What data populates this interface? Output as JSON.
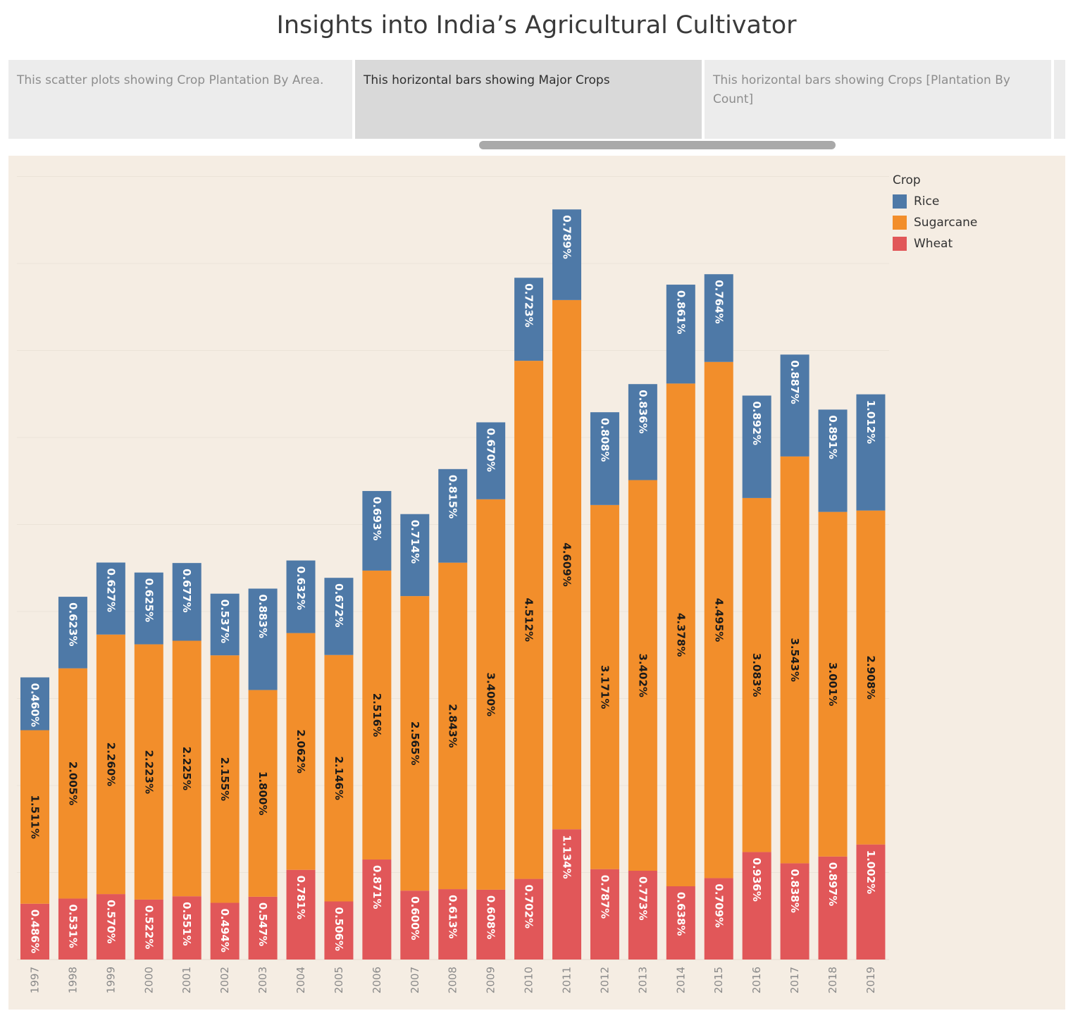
{
  "title": "Insights into India’s Agricultural Cultivator",
  "tabs": [
    {
      "label": "This scatter plots showing Crop Plantation By Area.",
      "active": false
    },
    {
      "label": "This horizontal bars showing Major Crops",
      "active": true
    },
    {
      "label": "This horizontal bars showing Crops [Plantation By Count]",
      "active": false
    }
  ],
  "legend": {
    "title": "Crop",
    "items": [
      {
        "name": "Rice",
        "color": "#4e79a7"
      },
      {
        "name": "Sugarcane",
        "color": "#f28e2b"
      },
      {
        "name": "Wheat",
        "color": "#e15759"
      }
    ]
  },
  "chart_data": {
    "type": "bar",
    "stacked": true,
    "categories": [
      "1997",
      "1998",
      "1999",
      "2000",
      "2001",
      "2002",
      "2003",
      "2004",
      "2005",
      "2006",
      "2007",
      "2008",
      "2009",
      "2010",
      "2011",
      "2012",
      "2013",
      "2014",
      "2015",
      "2016",
      "2017",
      "2018",
      "2019"
    ],
    "series": [
      {
        "name": "Wheat",
        "color": "#e15759",
        "label_color": "#ffffff",
        "values": [
          0.486,
          0.531,
          0.57,
          0.522,
          0.551,
          0.494,
          0.547,
          0.781,
          0.506,
          0.871,
          0.6,
          0.613,
          0.608,
          0.702,
          1.134,
          0.787,
          0.773,
          0.638,
          0.709,
          0.936,
          0.838,
          0.897,
          1.002
        ],
        "labels": [
          "0.486%",
          "0.531%",
          "0.570%",
          "0.522%",
          "0.551%",
          "0.494%",
          "0.547%",
          "0.781%",
          "0.506%",
          "0.871%",
          "0.600%",
          "0.613%",
          "0.608%",
          "0.702%",
          "1.134%",
          "0.787%",
          "0.773%",
          "0.638%",
          "0.709%",
          "0.936%",
          "0.838%",
          "0.897%",
          "1.002%"
        ]
      },
      {
        "name": "Sugarcane",
        "color": "#f28e2b",
        "label_color": "#1a1a1a",
        "values": [
          1.511,
          2.005,
          2.26,
          2.223,
          2.225,
          2.155,
          1.8,
          2.062,
          2.146,
          2.516,
          2.565,
          2.843,
          3.4,
          4.512,
          4.609,
          3.171,
          3.402,
          4.378,
          4.495,
          3.083,
          3.543,
          3.001,
          2.908
        ],
        "labels": [
          "1.511%",
          "2.005%",
          "2.260%",
          "2.223%",
          "2.225%",
          "2.155%",
          "1.800%",
          "2.062%",
          "2.146%",
          "2.516%",
          "2.565%",
          "2.843%",
          "3.400%",
          "4.512%",
          "4.609%",
          "3.171%",
          "3.402%",
          "4.378%",
          "4.495%",
          "3.083%",
          "3.543%",
          "3.001%",
          "2.908%"
        ]
      },
      {
        "name": "Rice",
        "color": "#4e79a7",
        "label_color": "#ffffff",
        "values": [
          0.46,
          0.623,
          0.627,
          0.625,
          0.677,
          0.537,
          0.883,
          0.632,
          0.672,
          0.693,
          0.714,
          0.815,
          0.67,
          0.723,
          0.789,
          0.808,
          0.836,
          0.861,
          0.764,
          0.892,
          0.887,
          0.891,
          1.012
        ],
        "labels": [
          "0.460%",
          "0.623%",
          "0.627%",
          "0.625%",
          "0.677%",
          "0.537%",
          "0.883%",
          "0.632%",
          "0.672%",
          "0.693%",
          "0.714%",
          "0.815%",
          "0.670%",
          "0.723%",
          "0.789%",
          "0.808%",
          "0.836%",
          "0.861%",
          "0.764%",
          "0.892%",
          "0.887%",
          "0.891%",
          "1.012%"
        ]
      }
    ],
    "grid": true,
    "legend_position": "top-right"
  }
}
